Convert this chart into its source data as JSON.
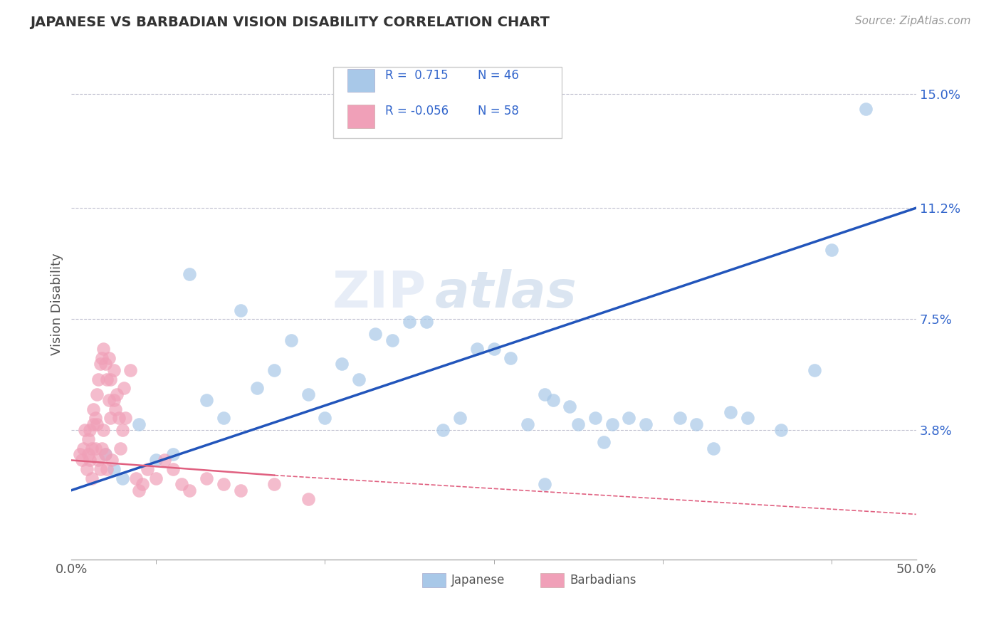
{
  "title": "JAPANESE VS BARBADIAN VISION DISABILITY CORRELATION CHART",
  "source": "Source: ZipAtlas.com",
  "ylabel": "Vision Disability",
  "xlim": [
    0,
    0.5
  ],
  "ylim": [
    -0.005,
    0.165
  ],
  "xticks": [
    0.0,
    0.1,
    0.2,
    0.3,
    0.4,
    0.5
  ],
  "xticklabels": [
    "0.0%",
    "",
    "",
    "",
    "",
    "50.0%"
  ],
  "ytick_positions": [
    0.038,
    0.075,
    0.112,
    0.15
  ],
  "ytick_labels": [
    "3.8%",
    "7.5%",
    "11.2%",
    "15.0%"
  ],
  "japanese_color": "#a8c8e8",
  "barbadian_color": "#f0a0b8",
  "japanese_line_color": "#2255bb",
  "barbadian_line_color": "#e06080",
  "legend_r_japanese": "0.715",
  "legend_n_japanese": "46",
  "legend_r_barbadian": "-0.056",
  "legend_n_barbadian": "58",
  "background_color": "#ffffff",
  "grid_color": "#c0c0d0",
  "watermark_zip": "ZIP",
  "watermark_atlas": "atlas",
  "japanese_x": [
    0.02,
    0.025,
    0.03,
    0.04,
    0.05,
    0.06,
    0.07,
    0.08,
    0.09,
    0.1,
    0.11,
    0.12,
    0.13,
    0.14,
    0.15,
    0.16,
    0.17,
    0.18,
    0.19,
    0.2,
    0.21,
    0.22,
    0.23,
    0.24,
    0.25,
    0.26,
    0.27,
    0.28,
    0.285,
    0.295,
    0.3,
    0.31,
    0.315,
    0.32,
    0.33,
    0.34,
    0.36,
    0.37,
    0.38,
    0.39,
    0.4,
    0.42,
    0.44,
    0.45,
    0.47,
    0.28
  ],
  "japanese_y": [
    0.03,
    0.025,
    0.022,
    0.04,
    0.028,
    0.03,
    0.09,
    0.048,
    0.042,
    0.078,
    0.052,
    0.058,
    0.068,
    0.05,
    0.042,
    0.06,
    0.055,
    0.07,
    0.068,
    0.074,
    0.074,
    0.038,
    0.042,
    0.065,
    0.065,
    0.062,
    0.04,
    0.05,
    0.048,
    0.046,
    0.04,
    0.042,
    0.034,
    0.04,
    0.042,
    0.04,
    0.042,
    0.04,
    0.032,
    0.044,
    0.042,
    0.038,
    0.058,
    0.098,
    0.145,
    0.02
  ],
  "barbadian_x": [
    0.005,
    0.006,
    0.007,
    0.008,
    0.009,
    0.01,
    0.01,
    0.011,
    0.011,
    0.012,
    0.012,
    0.013,
    0.013,
    0.014,
    0.014,
    0.015,
    0.015,
    0.016,
    0.016,
    0.017,
    0.017,
    0.018,
    0.018,
    0.019,
    0.019,
    0.02,
    0.02,
    0.021,
    0.021,
    0.022,
    0.022,
    0.023,
    0.023,
    0.024,
    0.025,
    0.025,
    0.026,
    0.027,
    0.028,
    0.029,
    0.03,
    0.031,
    0.032,
    0.035,
    0.038,
    0.04,
    0.042,
    0.045,
    0.05,
    0.055,
    0.06,
    0.065,
    0.07,
    0.08,
    0.09,
    0.1,
    0.12,
    0.14
  ],
  "barbadian_y": [
    0.03,
    0.028,
    0.032,
    0.038,
    0.025,
    0.03,
    0.035,
    0.028,
    0.038,
    0.022,
    0.032,
    0.04,
    0.045,
    0.032,
    0.042,
    0.04,
    0.05,
    0.028,
    0.055,
    0.025,
    0.06,
    0.032,
    0.062,
    0.038,
    0.065,
    0.03,
    0.06,
    0.025,
    0.055,
    0.048,
    0.062,
    0.042,
    0.055,
    0.028,
    0.048,
    0.058,
    0.045,
    0.05,
    0.042,
    0.032,
    0.038,
    0.052,
    0.042,
    0.058,
    0.022,
    0.018,
    0.02,
    0.025,
    0.022,
    0.028,
    0.025,
    0.02,
    0.018,
    0.022,
    0.02,
    0.018,
    0.02,
    0.015
  ]
}
